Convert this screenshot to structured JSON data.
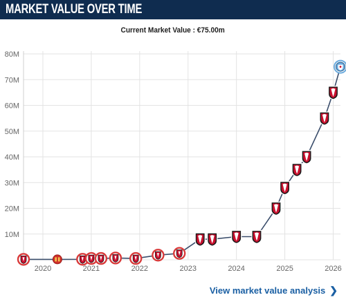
{
  "header": {
    "title": "MARKET VALUE OVER TIME"
  },
  "current_value_label": "Current Market Value : €75.00m",
  "footer": {
    "link_label": "View market value analysis",
    "chevron": "chevron-right-icon"
  },
  "colors": {
    "header_bg": "#0f2c4f",
    "line": "#3a4d6b",
    "grid": "#e3e3e3",
    "axis_text": "#666666",
    "link": "#1a5fa3",
    "bournemouth_red": "#c8102e",
    "bournemouth_black": "#1a1a1a",
    "youth_ring": "#d93a3a",
    "sunderland_red": "#d0302a",
    "city_blue": "#6cabdd"
  },
  "chart_data": {
    "type": "line",
    "title": "",
    "xlabel": "",
    "ylabel": "",
    "ylim": [
      0,
      80
    ],
    "xlim": [
      2019.6,
      2026.15
    ],
    "yticks": [
      "",
      "10M",
      "20M",
      "30M",
      "40M",
      "50M",
      "60M",
      "70M",
      "80M"
    ],
    "xticks": [
      "2020",
      "2021",
      "2022",
      "2023",
      "2024",
      "2025",
      "2026"
    ],
    "grid": true,
    "series": [
      {
        "points": [
          {
            "x": 2019.6,
            "y": 0.15,
            "club": "Bournemouth U21"
          },
          {
            "x": 2020.3,
            "y": 0.15,
            "club": "Sunderland"
          },
          {
            "x": 2020.82,
            "y": 0.2,
            "club": "Bournemouth U21"
          },
          {
            "x": 2021.0,
            "y": 0.5,
            "club": "Bournemouth U21"
          },
          {
            "x": 2021.2,
            "y": 0.5,
            "club": "Bournemouth U21"
          },
          {
            "x": 2021.5,
            "y": 0.7,
            "club": "Bournemouth U21"
          },
          {
            "x": 2021.92,
            "y": 0.5,
            "club": "Bournemouth U21"
          },
          {
            "x": 2022.38,
            "y": 1.8,
            "club": "Bournemouth U21"
          },
          {
            "x": 2022.82,
            "y": 2.5,
            "club": "Bournemouth U21"
          },
          {
            "x": 2023.25,
            "y": 8.0,
            "club": "Bournemouth"
          },
          {
            "x": 2023.5,
            "y": 8.0,
            "club": "Bournemouth"
          },
          {
            "x": 2024.0,
            "y": 9.0,
            "club": "Bournemouth"
          },
          {
            "x": 2024.42,
            "y": 9.0,
            "club": "Bournemouth"
          },
          {
            "x": 2024.82,
            "y": 20.0,
            "club": "Bournemouth"
          },
          {
            "x": 2025.0,
            "y": 28.0,
            "club": "Bournemouth"
          },
          {
            "x": 2025.25,
            "y": 35.0,
            "club": "Bournemouth"
          },
          {
            "x": 2025.45,
            "y": 40.0,
            "club": "Bournemouth"
          },
          {
            "x": 2025.82,
            "y": 55.0,
            "club": "Bournemouth"
          },
          {
            "x": 2026.0,
            "y": 65.0,
            "club": "Bournemouth"
          },
          {
            "x": 2026.15,
            "y": 75.0,
            "club": "Manchester City"
          }
        ]
      }
    ]
  }
}
